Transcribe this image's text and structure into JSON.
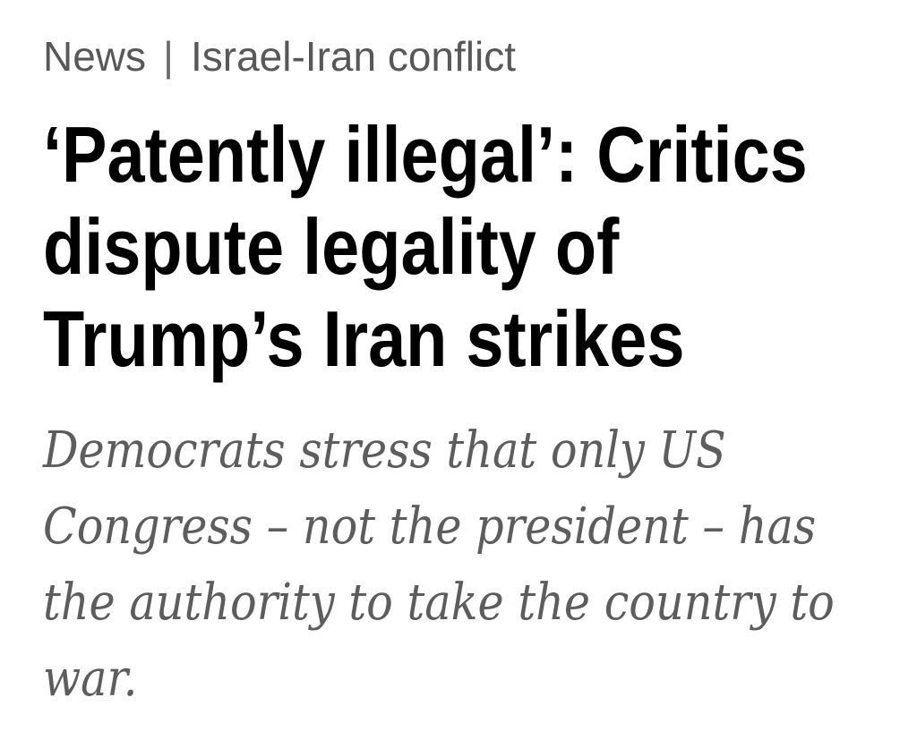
{
  "colors": {
    "background": "#ffffff",
    "headline": "#000000",
    "breadcrumb": "#585858",
    "standfirst": "#5d5d5d"
  },
  "breadcrumb": {
    "section": "News",
    "separator": "|",
    "topic": "Israel-Iran conflict"
  },
  "headline": {
    "lines": [
      "‘Patently illegal’: Critics",
      "dispute legality of",
      "Trump’s Iran strikes"
    ]
  },
  "standfirst": {
    "lines": [
      "Democrats stress that only US",
      "Congress – not the president – has",
      "the authority to take the country to",
      "war."
    ]
  }
}
